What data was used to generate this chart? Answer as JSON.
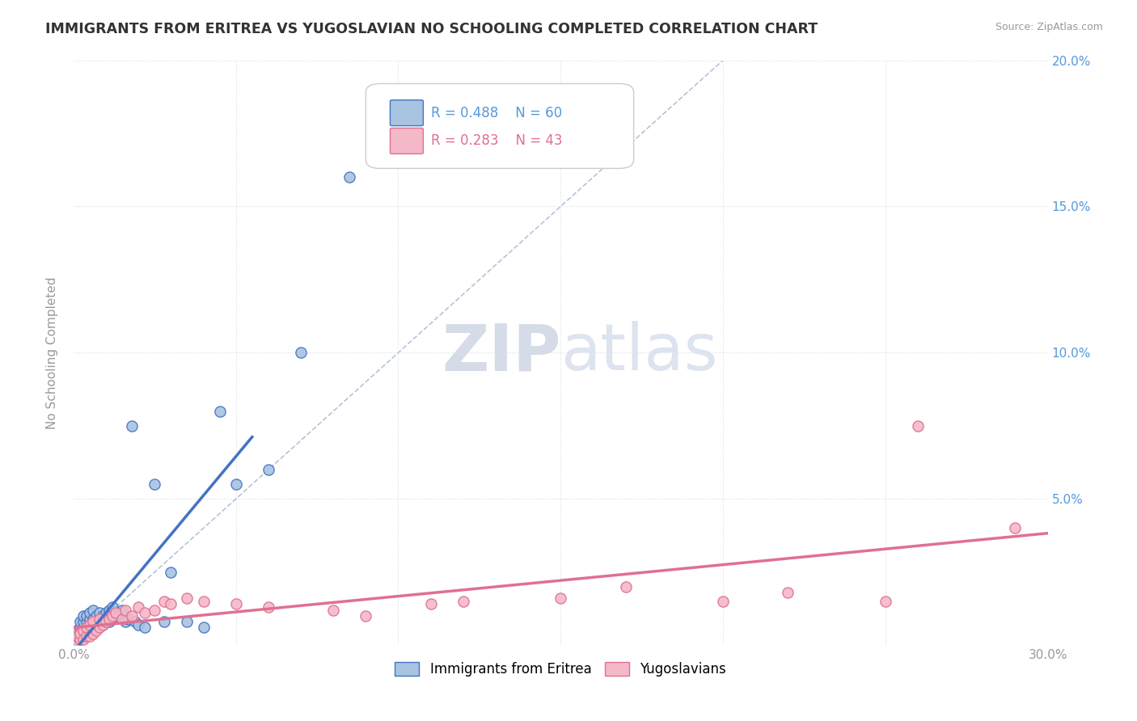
{
  "title": "IMMIGRANTS FROM ERITREA VS YUGOSLAVIAN NO SCHOOLING COMPLETED CORRELATION CHART",
  "source": "Source: ZipAtlas.com",
  "ylabel": "No Schooling Completed",
  "xlim": [
    0.0,
    0.3
  ],
  "ylim": [
    0.0,
    0.2
  ],
  "xticks": [
    0.0,
    0.05,
    0.1,
    0.15,
    0.2,
    0.25,
    0.3
  ],
  "xticklabels": [
    "0.0%",
    "",
    "",
    "",
    "",
    "",
    "30.0%"
  ],
  "yticks": [
    0.0,
    0.05,
    0.1,
    0.15,
    0.2
  ],
  "yticklabels": [
    "",
    "5.0%",
    "10.0%",
    "15.0%",
    "20.0%"
  ],
  "legend_r1": "R = 0.488",
  "legend_n1": "N = 60",
  "legend_r2": "R = 0.283",
  "legend_n2": "N = 43",
  "color_eritrea": "#a8c4e0",
  "color_eritrea_edge": "#4472c4",
  "color_eritrea_line": "#4472c4",
  "color_yugoslav": "#f4b8c8",
  "color_yugoslav_edge": "#e07090",
  "color_yugoslav_line": "#e07090",
  "color_diagonal": "#b0bcd4",
  "background_color": "#ffffff",
  "grid_color": "#d8dce8",
  "watermark_zip": "ZIP",
  "watermark_atlas": "atlas",
  "eritrea_x": [
    0.001,
    0.001,
    0.001,
    0.001,
    0.002,
    0.002,
    0.002,
    0.002,
    0.002,
    0.003,
    0.003,
    0.003,
    0.003,
    0.003,
    0.004,
    0.004,
    0.004,
    0.004,
    0.005,
    0.005,
    0.005,
    0.005,
    0.005,
    0.006,
    0.006,
    0.006,
    0.006,
    0.007,
    0.007,
    0.007,
    0.008,
    0.008,
    0.008,
    0.009,
    0.009,
    0.01,
    0.01,
    0.011,
    0.011,
    0.012,
    0.012,
    0.013,
    0.014,
    0.015,
    0.016,
    0.017,
    0.018,
    0.019,
    0.02,
    0.022,
    0.025,
    0.028,
    0.03,
    0.035,
    0.04,
    0.045,
    0.05,
    0.06,
    0.07,
    0.085
  ],
  "eritrea_y": [
    0.001,
    0.002,
    0.003,
    0.005,
    0.002,
    0.003,
    0.004,
    0.006,
    0.008,
    0.003,
    0.004,
    0.006,
    0.008,
    0.01,
    0.004,
    0.006,
    0.008,
    0.01,
    0.005,
    0.006,
    0.007,
    0.009,
    0.011,
    0.005,
    0.007,
    0.009,
    0.012,
    0.006,
    0.008,
    0.01,
    0.007,
    0.009,
    0.011,
    0.007,
    0.01,
    0.008,
    0.011,
    0.008,
    0.012,
    0.009,
    0.013,
    0.01,
    0.011,
    0.012,
    0.008,
    0.009,
    0.075,
    0.008,
    0.007,
    0.006,
    0.055,
    0.008,
    0.025,
    0.008,
    0.006,
    0.08,
    0.055,
    0.06,
    0.1,
    0.16
  ],
  "yugoslav_x": [
    0.001,
    0.001,
    0.002,
    0.002,
    0.003,
    0.003,
    0.004,
    0.004,
    0.005,
    0.005,
    0.006,
    0.006,
    0.007,
    0.008,
    0.008,
    0.009,
    0.01,
    0.011,
    0.012,
    0.013,
    0.015,
    0.016,
    0.018,
    0.02,
    0.022,
    0.025,
    0.028,
    0.03,
    0.035,
    0.04,
    0.05,
    0.06,
    0.08,
    0.09,
    0.11,
    0.12,
    0.15,
    0.17,
    0.2,
    0.22,
    0.25,
    0.26,
    0.29
  ],
  "yugoslav_y": [
    0.001,
    0.003,
    0.002,
    0.004,
    0.002,
    0.005,
    0.003,
    0.006,
    0.003,
    0.007,
    0.004,
    0.008,
    0.005,
    0.006,
    0.009,
    0.007,
    0.008,
    0.009,
    0.01,
    0.011,
    0.009,
    0.012,
    0.01,
    0.013,
    0.011,
    0.012,
    0.015,
    0.014,
    0.016,
    0.015,
    0.014,
    0.013,
    0.012,
    0.01,
    0.014,
    0.015,
    0.016,
    0.02,
    0.015,
    0.018,
    0.015,
    0.075,
    0.04
  ]
}
